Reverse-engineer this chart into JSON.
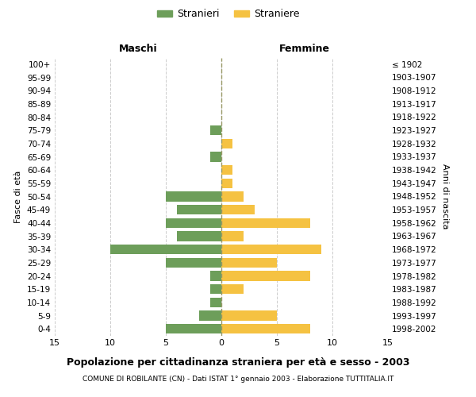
{
  "age_groups": [
    "0-4",
    "5-9",
    "10-14",
    "15-19",
    "20-24",
    "25-29",
    "30-34",
    "35-39",
    "40-44",
    "45-49",
    "50-54",
    "55-59",
    "60-64",
    "65-69",
    "70-74",
    "75-79",
    "80-84",
    "85-89",
    "90-94",
    "95-99",
    "100+"
  ],
  "birth_years": [
    "1998-2002",
    "1993-1997",
    "1988-1992",
    "1983-1987",
    "1978-1982",
    "1973-1977",
    "1968-1972",
    "1963-1967",
    "1958-1962",
    "1953-1957",
    "1948-1952",
    "1943-1947",
    "1938-1942",
    "1933-1937",
    "1928-1932",
    "1923-1927",
    "1918-1922",
    "1913-1917",
    "1908-1912",
    "1903-1907",
    "≤ 1902"
  ],
  "maschi": [
    5,
    2,
    1,
    1,
    1,
    5,
    10,
    4,
    5,
    4,
    5,
    0,
    0,
    1,
    0,
    1,
    0,
    0,
    0,
    0,
    0
  ],
  "femmine": [
    8,
    5,
    0,
    2,
    8,
    5,
    9,
    2,
    8,
    3,
    2,
    1,
    1,
    0,
    1,
    0,
    0,
    0,
    0,
    0,
    0
  ],
  "color_maschi": "#6d9e5a",
  "color_femmine": "#f5c242",
  "title": "Popolazione per cittadinanza straniera per età e sesso - 2003",
  "subtitle": "COMUNE DI ROBILANTE (CN) - Dati ISTAT 1° gennaio 2003 - Elaborazione TUTTITALIA.IT",
  "xlabel_left": "Maschi",
  "xlabel_right": "Femmine",
  "ylabel_left": "Fasce di età",
  "ylabel_right": "Anni di nascita",
  "legend_maschi": "Stranieri",
  "legend_femmine": "Straniere",
  "xlim": 15,
  "background_color": "#ffffff",
  "grid_color": "#cccccc"
}
